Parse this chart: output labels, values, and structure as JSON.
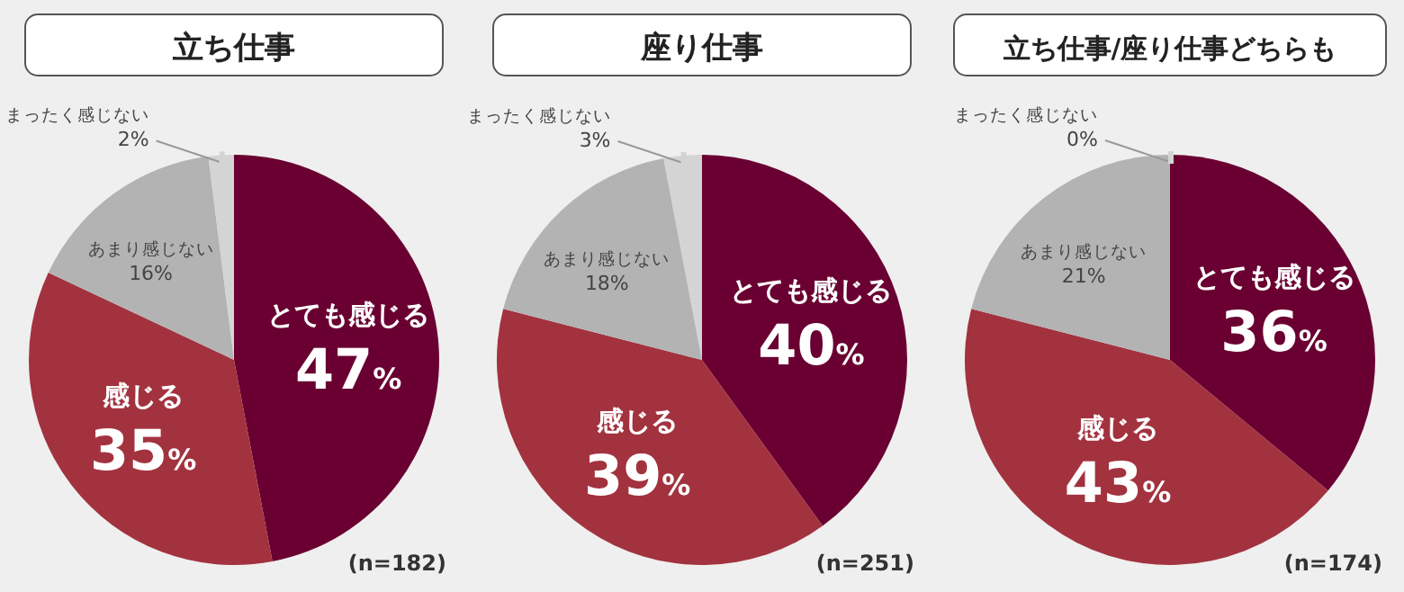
{
  "chart_data": [
    {
      "type": "pie",
      "title": "立ち仕事",
      "categories": [
        "とても感じる",
        "感じる",
        "あまり感じない",
        "まったく感じない"
      ],
      "values": [
        47,
        35,
        16,
        2
      ],
      "value_labels": [
        "47%",
        "35%",
        "16%",
        "2%"
      ],
      "colors": [
        "#6a0031",
        "#a3323f",
        "#b3b3b3",
        "#d4d4d4"
      ],
      "annotations": [
        "(n=182)"
      ]
    },
    {
      "type": "pie",
      "title": "座り仕事",
      "categories": [
        "とても感じる",
        "感じる",
        "あまり感じない",
        "まったく感じない"
      ],
      "values": [
        40,
        39,
        18,
        3
      ],
      "value_labels": [
        "40%",
        "39%",
        "18%",
        "3%"
      ],
      "colors": [
        "#6a0031",
        "#a3323f",
        "#b3b3b3",
        "#d4d4d4"
      ],
      "annotations": [
        "(n=251)"
      ]
    },
    {
      "type": "pie",
      "title": "立ち仕事/座り仕事どちらも",
      "categories": [
        "とても感じる",
        "感じる",
        "あまり感じない",
        "まったく感じない"
      ],
      "values": [
        36,
        43,
        21,
        0
      ],
      "value_labels": [
        "36%",
        "43%",
        "21%",
        "0%"
      ],
      "colors": [
        "#6a0031",
        "#a3323f",
        "#b3b3b3",
        "#d4d4d4"
      ],
      "annotations": [
        "(n=174)"
      ]
    }
  ]
}
